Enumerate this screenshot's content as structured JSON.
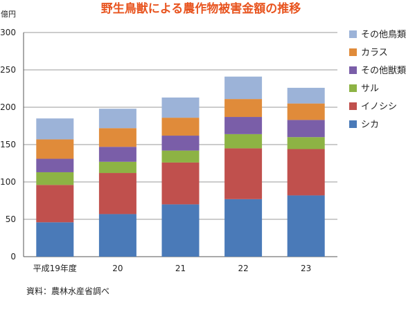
{
  "chart_data": {
    "type": "bar",
    "stacked": true,
    "title": "野生鳥獣による農作物被害金額の推移",
    "ylabel": "億円",
    "xlabel": "",
    "ylim": [
      0,
      300
    ],
    "yticks": [
      0,
      50,
      100,
      150,
      200,
      250,
      300
    ],
    "grid": true,
    "legend_position": "right",
    "categories": [
      "平成19年度",
      "20",
      "21",
      "22",
      "23"
    ],
    "series": [
      {
        "name": "シカ",
        "color": "#4a7ab8",
        "values": [
          46,
          57,
          70,
          77,
          82
        ]
      },
      {
        "name": "イノシシ",
        "color": "#c0504d",
        "values": [
          50,
          55,
          56,
          68,
          62
        ]
      },
      {
        "name": "サル",
        "color": "#8db344",
        "values": [
          17,
          15,
          16,
          19,
          16
        ]
      },
      {
        "name": "その他獣類",
        "color": "#7a5ea8",
        "values": [
          18,
          20,
          20,
          23,
          23
        ]
      },
      {
        "name": "カラス",
        "color": "#e08b3a",
        "values": [
          26,
          25,
          24,
          24,
          22
        ]
      },
      {
        "name": "その他鳥類",
        "color": "#9cb3d8",
        "values": [
          28,
          26,
          27,
          30,
          21
        ]
      }
    ],
    "source": "資料：農林水産省調べ"
  }
}
